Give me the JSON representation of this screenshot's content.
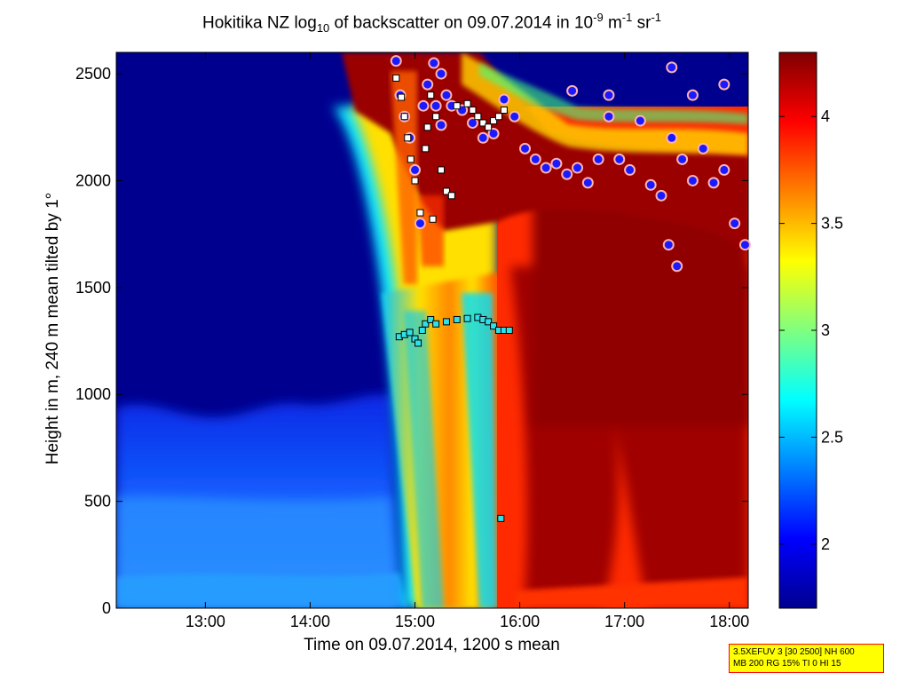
{
  "title": {
    "pre": "Hokitika NZ log",
    "sub": "10",
    "mid": " of backscatter on 09.07.2014 in 10",
    "sup1": "-9",
    "unit1": " m",
    "sup2": "-1",
    "unit2": " sr",
    "sup3": "-1"
  },
  "info_box": {
    "line1": "3.5XEFUV 3 [30 2500] NH 600",
    "line2": "MB 200 RG 15% TI 0 HI 15"
  },
  "chart_data": {
    "type": "heatmap",
    "xlabel": "Time on 09.07.2014, 1200 s mean",
    "ylabel": "Height in m, 240 m mean tilted by 1°",
    "x_ticks": [
      "13:00",
      "14:00",
      "15:00",
      "16:00",
      "17:00",
      "18:00"
    ],
    "x_tick_hours": [
      13,
      14,
      15,
      16,
      17,
      18
    ],
    "xlim_hours": [
      12.15,
      18.18
    ],
    "y_ticks": [
      0,
      500,
      1000,
      1500,
      2000,
      2500
    ],
    "ylim": [
      0,
      2600
    ],
    "colorbar": {
      "ticks": [
        2,
        2.5,
        3,
        3.5,
        4
      ],
      "range": [
        1.7,
        4.3
      ],
      "colormap": "jet"
    },
    "cloud_base_series": {
      "name": "",
      "marker": "cyan-square",
      "points": [
        [
          14.85,
          1270
        ],
        [
          14.9,
          1280
        ],
        [
          14.95,
          1290
        ],
        [
          15.0,
          1260
        ],
        [
          15.03,
          1240
        ],
        [
          15.07,
          1300
        ],
        [
          15.1,
          1330
        ],
        [
          15.15,
          1350
        ],
        [
          15.2,
          1330
        ],
        [
          15.3,
          1340
        ],
        [
          15.4,
          1350
        ],
        [
          15.5,
          1355
        ],
        [
          15.6,
          1360
        ],
        [
          15.65,
          1350
        ],
        [
          15.7,
          1340
        ],
        [
          15.75,
          1320
        ],
        [
          15.8,
          1300
        ],
        [
          15.85,
          1300
        ],
        [
          15.9,
          1300
        ],
        [
          15.82,
          420
        ]
      ]
    },
    "layer_series": {
      "name": "",
      "marker": "white-square",
      "points": [
        [
          14.82,
          2480
        ],
        [
          14.87,
          2390
        ],
        [
          14.9,
          2300
        ],
        [
          14.93,
          2200
        ],
        [
          14.96,
          2100
        ],
        [
          15.0,
          2000
        ],
        [
          15.05,
          1850
        ],
        [
          15.1,
          2150
        ],
        [
          15.12,
          2250
        ],
        [
          15.15,
          2400
        ],
        [
          15.2,
          2300
        ],
        [
          15.25,
          2050
        ],
        [
          15.3,
          1950
        ],
        [
          15.35,
          1930
        ],
        [
          15.4,
          2350
        ],
        [
          15.5,
          2360
        ],
        [
          15.55,
          2330
        ],
        [
          15.6,
          2300
        ],
        [
          15.65,
          2270
        ],
        [
          15.7,
          2250
        ],
        [
          15.75,
          2280
        ],
        [
          15.8,
          2300
        ],
        [
          15.85,
          2330
        ],
        [
          15.17,
          1820
        ]
      ]
    },
    "cloud_top_series": {
      "name": "",
      "marker": "blue-circle",
      "points": [
        [
          14.82,
          2560
        ],
        [
          14.86,
          2400
        ],
        [
          14.9,
          2300
        ],
        [
          14.95,
          2200
        ],
        [
          15.0,
          2050
        ],
        [
          15.05,
          1800
        ],
        [
          15.08,
          2350
        ],
        [
          15.12,
          2450
        ],
        [
          15.18,
          2550
        ],
        [
          15.25,
          2500
        ],
        [
          15.3,
          2400
        ],
        [
          15.35,
          2350
        ],
        [
          15.45,
          2330
        ],
        [
          15.55,
          2270
        ],
        [
          15.65,
          2200
        ],
        [
          15.75,
          2220
        ],
        [
          15.85,
          2380
        ],
        [
          15.95,
          2300
        ],
        [
          16.05,
          2150
        ],
        [
          16.15,
          2100
        ],
        [
          16.25,
          2060
        ],
        [
          16.35,
          2080
        ],
        [
          16.45,
          2030
        ],
        [
          16.55,
          2060
        ],
        [
          16.65,
          1990
        ],
        [
          16.75,
          2100
        ],
        [
          16.85,
          2300
        ],
        [
          16.95,
          2100
        ],
        [
          17.05,
          2050
        ],
        [
          17.15,
          2280
        ],
        [
          17.25,
          1980
        ],
        [
          17.35,
          1930
        ],
        [
          17.45,
          2200
        ],
        [
          17.55,
          2100
        ],
        [
          17.65,
          2000
        ],
        [
          17.75,
          2150
        ],
        [
          17.85,
          1990
        ],
        [
          17.95,
          2050
        ],
        [
          18.05,
          1800
        ],
        [
          18.15,
          1700
        ],
        [
          17.42,
          1700
        ],
        [
          17.5,
          1600
        ],
        [
          17.95,
          2450
        ],
        [
          17.45,
          2530
        ],
        [
          16.85,
          2400
        ],
        [
          16.5,
          2420
        ],
        [
          17.65,
          2400
        ],
        [
          15.2,
          2350
        ],
        [
          15.25,
          2260
        ]
      ]
    }
  }
}
